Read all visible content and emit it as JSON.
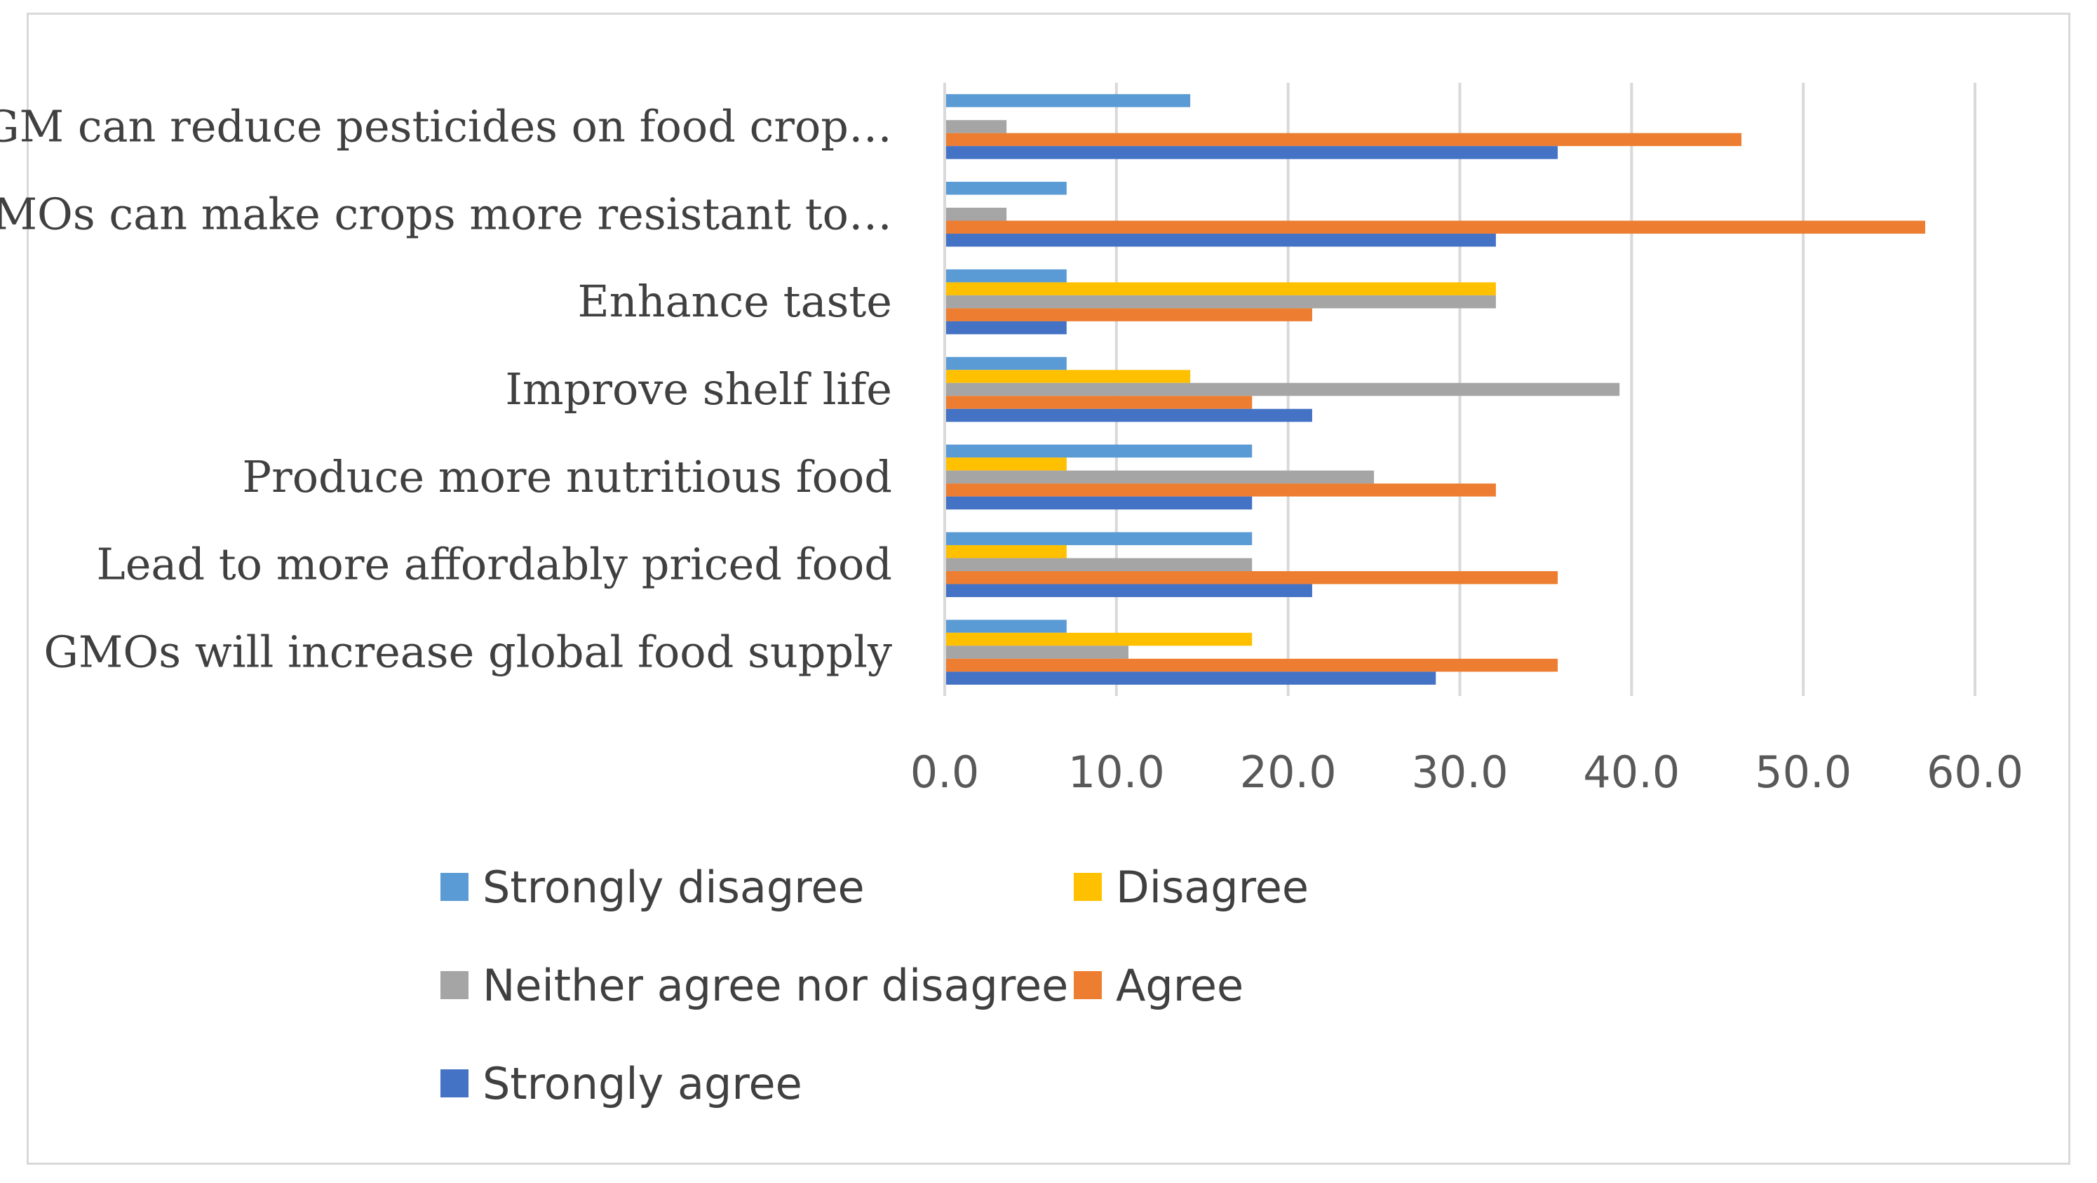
{
  "chart_data": {
    "type": "bar",
    "orientation": "horizontal",
    "title": "",
    "xlabel": "",
    "ylabel": "",
    "xlim": [
      0,
      60
    ],
    "x_ticks": [
      "0.0",
      "10.0",
      "20.0",
      "30.0",
      "40.0",
      "50.0",
      "60.0"
    ],
    "grid": true,
    "categories": [
      "GM can reduce pesticides on food crop…",
      "GMOs can make crops more resistant to…",
      "Enhance taste",
      "Improve shelf life",
      "Produce more nutritious food",
      "Lead to more affordably priced food",
      "GMOs will increase global food supply"
    ],
    "series": [
      {
        "name": "Strongly disagree",
        "color": "#5b9bd5",
        "values": [
          14.3,
          7.1,
          7.1,
          7.1,
          17.9,
          17.9,
          7.1
        ]
      },
      {
        "name": "Disagree",
        "color": "#ffc000",
        "values": [
          0,
          0,
          32.1,
          14.3,
          7.1,
          7.1,
          17.9
        ]
      },
      {
        "name": "Neither agree nor disagree",
        "color": "#a5a5a5",
        "values": [
          3.6,
          3.6,
          32.1,
          39.3,
          25.0,
          17.9,
          10.7
        ]
      },
      {
        "name": "Agree",
        "color": "#ed7d31",
        "values": [
          46.4,
          57.1,
          21.4,
          17.9,
          32.1,
          35.7,
          35.7
        ]
      },
      {
        "name": "Strongly agree",
        "color": "#4472c4",
        "values": [
          35.7,
          32.1,
          7.1,
          21.4,
          17.9,
          21.4,
          28.6
        ]
      }
    ],
    "legend_position": "bottom"
  }
}
